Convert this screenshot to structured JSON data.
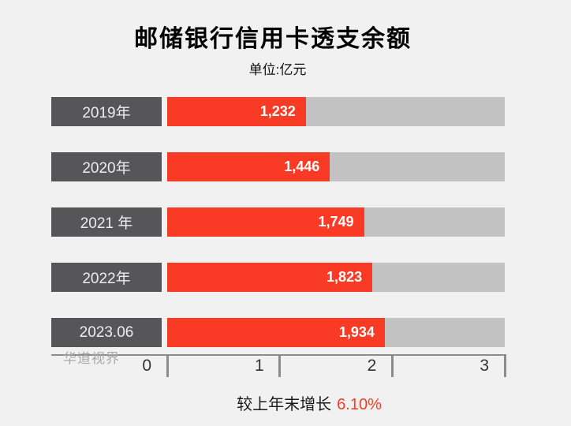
{
  "title": "邮储银行信用卡透支余额",
  "subtitle": "单位:亿元",
  "watermark": "华道视界",
  "footer": {
    "growth_label": "较上年末增长",
    "growth_value": "6.10%"
  },
  "colors": {
    "background": "#F1F1F1",
    "bar_red": "#F93B26",
    "category_box": "#565658",
    "track_gray": "#C2C2C2",
    "axis_gray": "#8C8C8C"
  },
  "chart_data": {
    "type": "bar",
    "orientation": "horizontal",
    "title": "邮储银行信用卡透支余额",
    "unit_label": "单位:亿元",
    "categories": [
      "2019年",
      "2020年",
      "2021 年",
      "2022年",
      "2023.06"
    ],
    "values": [
      1232,
      1446,
      1749,
      1823,
      1934
    ],
    "value_labels": [
      "1,232",
      "1,446",
      "1,749",
      "1,823",
      "1,934"
    ],
    "xlim": [
      0,
      3000
    ],
    "x_tick_labels": [
      "0",
      "1",
      "2",
      "3"
    ],
    "x_tick_values": [
      0,
      1000,
      2000,
      3000
    ],
    "grid": false,
    "annotation": "较上年末增长 6.10%"
  }
}
